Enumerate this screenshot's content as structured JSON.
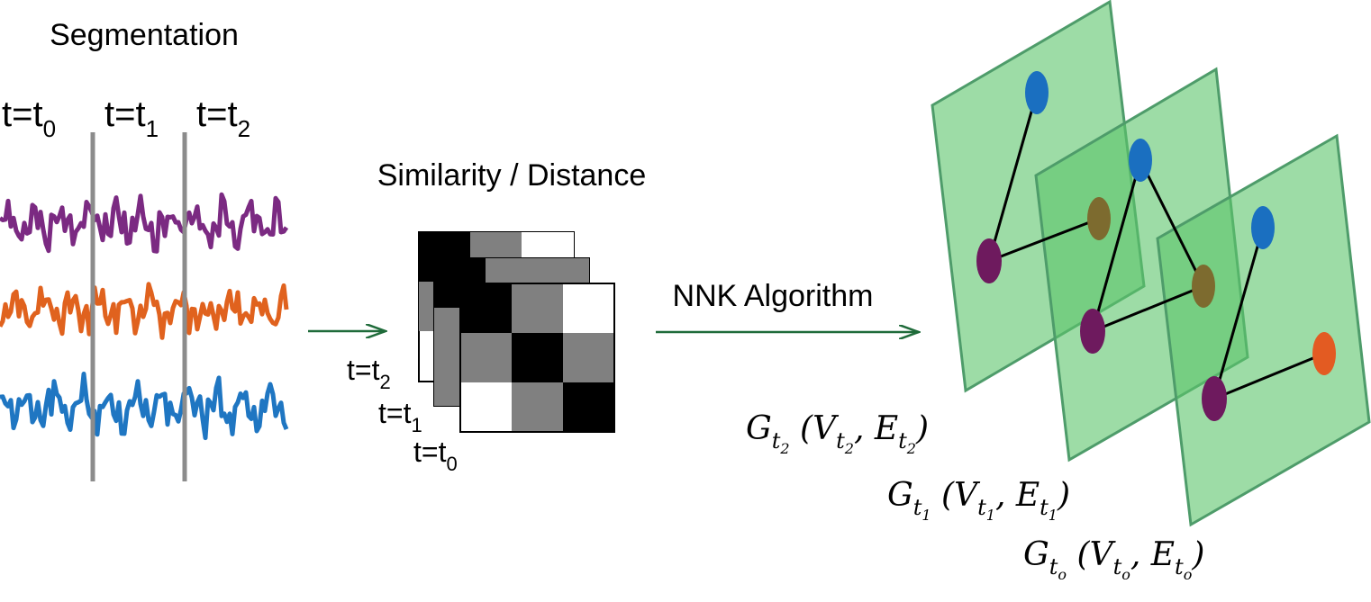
{
  "segmentation": {
    "title": "Segmentation",
    "time_labels": [
      {
        "base": "t=t",
        "sub": "0"
      },
      {
        "base": "t=t",
        "sub": "1"
      },
      {
        "base": "t=t",
        "sub": "2"
      }
    ],
    "signal_colors": [
      "#7b2a82",
      "#e0621e",
      "#1f76c2"
    ],
    "divider_color": "#8c8c8c"
  },
  "similarity": {
    "title": "Similarity / Distance",
    "matrix_labels": [
      {
        "base": "t=t",
        "sub": "2"
      },
      {
        "base": "t=t",
        "sub": "1"
      },
      {
        "base": "t=t",
        "sub": "0"
      }
    ]
  },
  "arrows": {
    "color": "#1f6b3a",
    "nnk_label": "NNK Algorithm"
  },
  "graphs": {
    "plane_fill": "#5cc46a",
    "plane_edge": "#4e9c6a",
    "layers": [
      {
        "G": "G",
        "t": "t",
        "sub": "2",
        "V": "V",
        "E": "E"
      },
      {
        "G": "G",
        "t": "t",
        "sub": "1",
        "V": "V",
        "E": "E"
      },
      {
        "G": "G",
        "t": "t",
        "sub": "o",
        "V": "V",
        "E": "E"
      }
    ],
    "node_colors": {
      "blue": "#1a6fc0",
      "purple": "#6e1a5e",
      "olive": "#7d6b2f",
      "orange": "#e35b22"
    }
  }
}
